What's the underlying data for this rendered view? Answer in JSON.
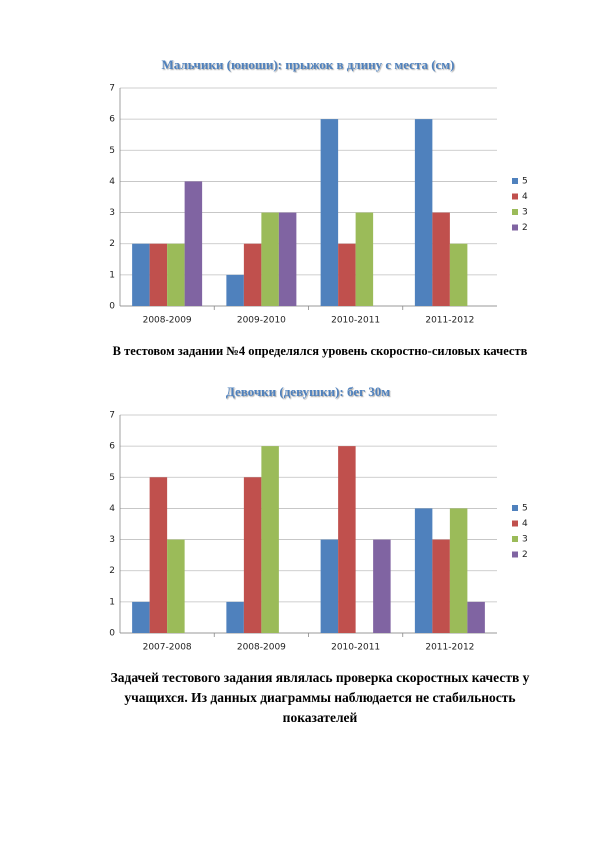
{
  "chart_data": [
    {
      "type": "bar",
      "title": "Мальчики (юноши): прыжок в длину с места (см)",
      "categories": [
        "2008-2009",
        "2009-2010",
        "2010-2011",
        "2011-2012"
      ],
      "series": [
        {
          "name": "5",
          "color": "#4f81bd",
          "values": [
            2,
            1,
            6,
            6
          ]
        },
        {
          "name": "4",
          "color": "#c0504d",
          "values": [
            2,
            2,
            2,
            3
          ]
        },
        {
          "name": "3",
          "color": "#9bbb59",
          "values": [
            2,
            3,
            3,
            2
          ]
        },
        {
          "name": "2",
          "color": "#8064a2",
          "values": [
            4,
            3,
            null,
            null
          ]
        }
      ],
      "ylim": [
        0,
        7
      ],
      "yticks": [
        0,
        1,
        2,
        3,
        4,
        5,
        6,
        7
      ],
      "grid": true,
      "legend": "right"
    },
    {
      "type": "bar",
      "title": "Девочки (девушки): бег 30м",
      "categories": [
        "2007-2008",
        "2008-2009",
        "2010-2011",
        "2011-2012"
      ],
      "series": [
        {
          "name": "5",
          "color": "#4f81bd",
          "values": [
            1,
            1,
            3,
            4
          ]
        },
        {
          "name": "4",
          "color": "#c0504d",
          "values": [
            5,
            5,
            6,
            3
          ]
        },
        {
          "name": "3",
          "color": "#9bbb59",
          "values": [
            3,
            6,
            null,
            4
          ]
        },
        {
          "name": "2",
          "color": "#8064a2",
          "values": [
            null,
            null,
            3,
            1
          ]
        }
      ],
      "ylim": [
        0,
        7
      ],
      "yticks": [
        0,
        1,
        2,
        3,
        4,
        5,
        6,
        7
      ],
      "grid": true,
      "legend": "right"
    }
  ],
  "paragraphs": [
    "В тестовом задании №4 определялся уровень скоростно-силовых качеств",
    "Задачей тестового задания являлась проверка  скоростных качеств у учащихся. Из данных диаграммы наблюдается не стабильность показателей"
  ]
}
